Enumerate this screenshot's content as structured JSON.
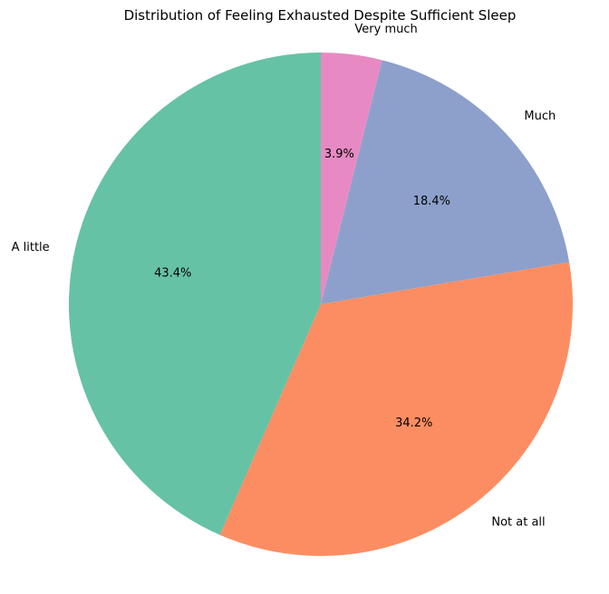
{
  "chart_data": {
    "type": "pie",
    "title": "Distribution of Feeling Exhausted Despite Sufficient Sleep",
    "start_angle_deg": 90,
    "direction": "counterclockwise",
    "legend": "none",
    "slices": [
      {
        "label": "A little",
        "value": 43.4,
        "pct_label": "43.4%",
        "color": "#66c2a5"
      },
      {
        "label": "Not at all",
        "value": 34.2,
        "pct_label": "34.2%",
        "color": "#fc8d62"
      },
      {
        "label": "Much",
        "value": 18.4,
        "pct_label": "18.4%",
        "color": "#8da0cb"
      },
      {
        "label": "Very much",
        "value": 3.9,
        "pct_label": "3.9%",
        "color": "#e78ac3"
      }
    ]
  }
}
